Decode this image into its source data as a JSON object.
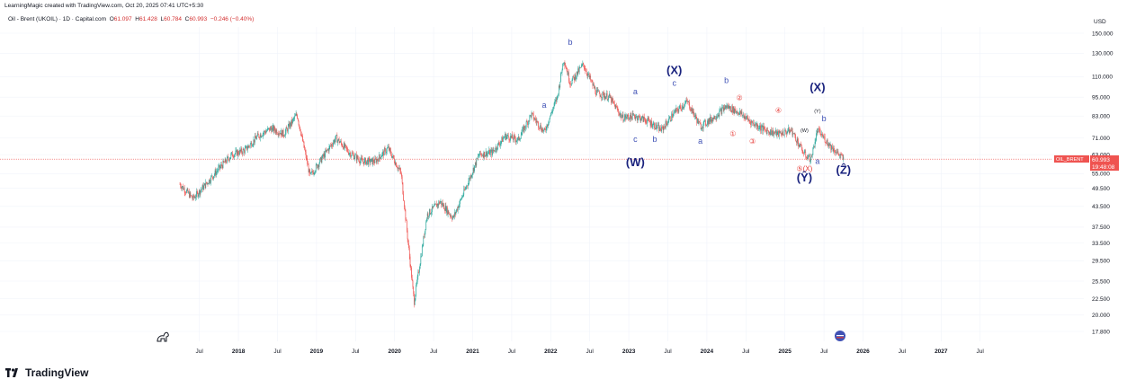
{
  "header": {
    "created_by": "LearningMagic created with TradingView.com, Oct 20, 2025 07:41 UTC+5:30"
  },
  "symbol": {
    "name": "Oil - Brent (UKOIL) · 1D · Capital.com",
    "o_label": "O",
    "o": "61.097",
    "h_label": "H",
    "h": "61.428",
    "l_label": "L",
    "l": "60.784",
    "c_label": "C",
    "c": "60.993",
    "change": "−0.246 (−0.40%)"
  },
  "price_tag": {
    "ticker": "OIL_BRENT",
    "price": "60.993",
    "countdown": "19:48:08"
  },
  "footer": {
    "brand": "TradingView"
  },
  "colors": {
    "up": "#26a69a",
    "down": "#ef5350",
    "wave_major": "#1a237e",
    "wave_minor": "#3f51b5",
    "wave_red": "#e53935",
    "price_line": "#ef5350"
  },
  "chart_data": {
    "type": "line",
    "title": "",
    "ylabel": "USD",
    "log_scale": true,
    "ylim": [
      17.8,
      150
    ],
    "x": [
      "2017-04",
      "2017-06",
      "2017-08",
      "2017-10",
      "2017-12",
      "2018-02",
      "2018-04",
      "2018-06",
      "2018-08",
      "2018-10",
      "2018-12",
      "2019-02",
      "2019-04",
      "2019-06",
      "2019-08",
      "2019-10",
      "2019-12",
      "2020-02",
      "2020-04",
      "2020-06",
      "2020-08",
      "2020-10",
      "2020-12",
      "2021-02",
      "2021-04",
      "2021-06",
      "2021-08",
      "2021-10",
      "2021-12",
      "2022-02",
      "2022-03",
      "2022-04",
      "2022-06",
      "2022-08",
      "2022-10",
      "2022-12",
      "2023-02",
      "2023-04",
      "2023-06",
      "2023-08",
      "2023-10",
      "2023-12",
      "2024-02",
      "2024-04",
      "2024-06",
      "2024-08",
      "2024-10",
      "2024-12",
      "2025-02",
      "2025-04",
      "2025-05",
      "2025-06",
      "2025-08",
      "2025-10"
    ],
    "series": [
      {
        "values": [
          51,
          46,
          51,
          57,
          63,
          65,
          72,
          76,
          73,
          84,
          54,
          62,
          71,
          64,
          60,
          60,
          66,
          55,
          22,
          41,
          45,
          40,
          50,
          63,
          64,
          72,
          70,
          84,
          74,
          95,
          125,
          105,
          120,
          98,
          95,
          82,
          83,
          80,
          75,
          85,
          92,
          77,
          82,
          89,
          85,
          79,
          75,
          73,
          75,
          63,
          61,
          75,
          67,
          61
        ]
      }
    ],
    "yticks": [
      "150.000",
      "130.000",
      "110.000",
      "95.000",
      "83.000",
      "71.000",
      "63.000",
      "55.000",
      "49.500",
      "43.500",
      "37.500",
      "33.500",
      "29.500",
      "25.500",
      "22.500",
      "20.000",
      "17.800"
    ],
    "xticks": [
      "Jul",
      "2018",
      "Jul",
      "2019",
      "Jul",
      "2020",
      "Jul",
      "2021",
      "Jul",
      "2022",
      "Jul",
      "2023",
      "Jul",
      "2024",
      "Jul",
      "2025",
      "Jul",
      "2026",
      "Jul",
      "2027",
      "Jul"
    ],
    "y_axis_unit": "USD",
    "annotations": [
      {
        "label": "b",
        "date": "2022-04",
        "value": 138,
        "kind": "minor"
      },
      {
        "label": "a",
        "date": "2021-12",
        "value": 88,
        "kind": "minor"
      },
      {
        "label": "(X)",
        "date": "2023-08",
        "value": 112,
        "kind": "major"
      },
      {
        "label": "c",
        "date": "2023-08",
        "value": 103,
        "kind": "minor"
      },
      {
        "label": "a",
        "date": "2023-02",
        "value": 97,
        "kind": "minor"
      },
      {
        "label": "c",
        "date": "2023-02",
        "value": 69,
        "kind": "minor"
      },
      {
        "label": "b",
        "date": "2023-05",
        "value": 69,
        "kind": "minor"
      },
      {
        "label": "(W)",
        "date": "2023-02",
        "value": 58,
        "kind": "major"
      },
      {
        "label": "b",
        "date": "2024-04",
        "value": 105,
        "kind": "minor"
      },
      {
        "label": "a",
        "date": "2023-12",
        "value": 68,
        "kind": "minor"
      },
      {
        "label": "②",
        "date": "2024-06",
        "value": 93,
        "kind": "red"
      },
      {
        "label": "①",
        "date": "2024-05",
        "value": 72,
        "kind": "red"
      },
      {
        "label": "③",
        "date": "2024-08",
        "value": 68,
        "kind": "red"
      },
      {
        "label": "④",
        "date": "2024-12",
        "value": 85,
        "kind": "red"
      },
      {
        "label": "(X)",
        "date": "2025-06",
        "value": 99,
        "kind": "major"
      },
      {
        "label": "(Y)",
        "date": "2025-06",
        "value": 85,
        "kind": "small"
      },
      {
        "label": "b",
        "date": "2025-07",
        "value": 80,
        "kind": "minor"
      },
      {
        "label": "(W)",
        "date": "2025-04",
        "value": 74,
        "kind": "small"
      },
      {
        "label": "a",
        "date": "2025-06",
        "value": 59,
        "kind": "minor"
      },
      {
        "label": "⑤(X)",
        "date": "2025-04",
        "value": 56,
        "kind": "red"
      },
      {
        "label": "(Ŷ)",
        "date": "2025-04",
        "value": 52,
        "kind": "major"
      },
      {
        "label": "(Ẑ)",
        "date": "2025-10",
        "value": 55,
        "kind": "major"
      }
    ]
  }
}
